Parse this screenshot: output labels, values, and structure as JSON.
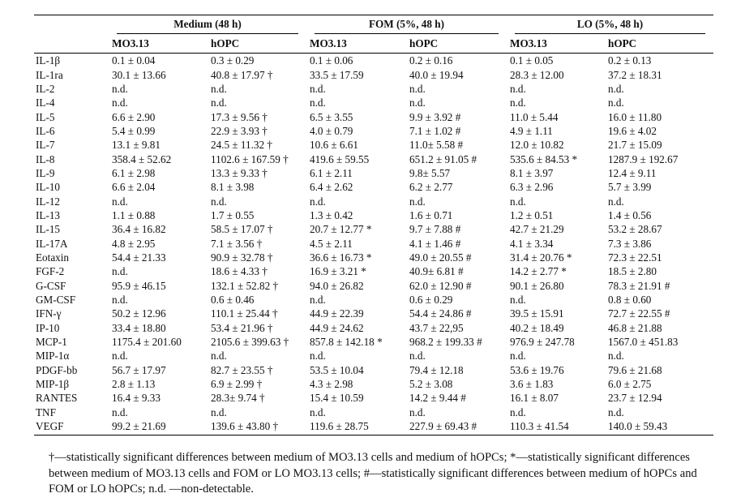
{
  "table": {
    "group_headers": [
      "Medium (48 h)",
      "FOM (5%, 48 h)",
      "LO (5%, 48 h)"
    ],
    "sub_headers": [
      "MO3.13",
      "hOPC",
      "MO3.13",
      "hOPC",
      "MO3.13",
      "hOPC"
    ],
    "rows": [
      {
        "label": "IL-1β",
        "cells": [
          "0.1 ± 0.04",
          "0.3 ± 0.29",
          "0.1 ± 0.06",
          "0.2 ± 0.16",
          "0.1 ± 0.05",
          "0.2 ± 0.13"
        ]
      },
      {
        "label": "IL-1ra",
        "cells": [
          "30.1 ± 13.66",
          "40.8 ± 17.97 †",
          "33.5 ± 17.59",
          "40.0 ± 19.94",
          "28.3 ± 12.00",
          "37.2 ± 18.31"
        ]
      },
      {
        "label": "IL-2",
        "cells": [
          "n.d.",
          "n.d.",
          "n.d.",
          "n.d.",
          "n.d.",
          "n.d."
        ]
      },
      {
        "label": "IL-4",
        "cells": [
          "n.d.",
          "n.d.",
          "n.d.",
          "n.d.",
          "n.d.",
          "n.d."
        ]
      },
      {
        "label": "IL-5",
        "cells": [
          "6.6 ± 2.90",
          "17.3 ± 9.56 †",
          "6.5 ± 3.55",
          "9.9 ± 3.92 #",
          "11.0 ± 5.44",
          "16.0 ± 11.80"
        ]
      },
      {
        "label": "IL-6",
        "cells": [
          "5.4 ± 0.99",
          "22.9 ± 3.93 †",
          "4.0 ± 0.79",
          "7.1 ± 1.02 #",
          "4.9 ± 1.11",
          "19.6 ± 4.02"
        ]
      },
      {
        "label": "IL-7",
        "cells": [
          "13.1 ± 9.81",
          "24.5 ± 11.32 †",
          "10.6 ± 6.61",
          "11.0± 5.58 #",
          "12.0 ± 10.82",
          "21.7 ± 15.09"
        ]
      },
      {
        "label": "IL-8",
        "cells": [
          "358.4 ± 52.62",
          "1102.6 ± 167.59 †",
          "419.6 ± 59.55",
          "651.2 ± 91.05 #",
          "535.6 ± 84.53 *",
          "1287.9 ± 192.67"
        ]
      },
      {
        "label": "IL-9",
        "cells": [
          "6.1 ± 2.98",
          "13.3 ± 9.33 †",
          "6.1 ± 2.11",
          "9.8± 5.57",
          "8.1 ± 3.97",
          "12.4 ± 9.11"
        ]
      },
      {
        "label": "IL-10",
        "cells": [
          "6.6 ± 2.04",
          "8.1 ± 3.98",
          "6.4 ± 2.62",
          "6.2 ± 2.77",
          "6.3 ± 2.96",
          "5.7 ± 3.99"
        ]
      },
      {
        "label": "IL-12",
        "cells": [
          "n.d.",
          "n.d.",
          "n.d.",
          "n.d.",
          "n.d.",
          "n.d."
        ]
      },
      {
        "label": "IL-13",
        "cells": [
          "1.1 ± 0.88",
          "1.7 ± 0.55",
          "1.3 ± 0.42",
          "1.6 ± 0.71",
          "1.2 ± 0.51",
          "1.4 ± 0.56"
        ]
      },
      {
        "label": "IL-15",
        "cells": [
          "36.4 ± 16.82",
          "58.5 ± 17.07 †",
          "20.7 ± 12.77 *",
          "9.7 ± 7.88 #",
          "42.7 ± 21.29",
          "53.2 ± 28.67"
        ]
      },
      {
        "label": "IL-17A",
        "cells": [
          "4.8 ± 2.95",
          "7.1 ± 3.56 †",
          "4.5 ± 2.11",
          "4.1 ± 1.46 #",
          "4.1 ± 3.34",
          "7.3 ± 3.86"
        ]
      },
      {
        "label": "Eotaxin",
        "cells": [
          "54.4 ± 21.33",
          "90.9 ± 32.78 †",
          "36.6 ± 16.73 *",
          "49.0 ± 20.55 #",
          "31.4 ± 20.76 *",
          "72.3 ± 22.51"
        ]
      },
      {
        "label": "FGF-2",
        "cells": [
          "n.d.",
          "18.6 ± 4.33 †",
          "16.9 ± 3.21 *",
          "40.9± 6.81 #",
          "14.2 ± 2.77 *",
          "18.5 ± 2.80"
        ]
      },
      {
        "label": "G-CSF",
        "cells": [
          "95.9 ± 46.15",
          "132.1 ± 52.82 †",
          "94.0 ± 26.82",
          "62.0 ± 12.90 #",
          "90.1 ± 26.80",
          "78.3 ± 21.91 #"
        ]
      },
      {
        "label": "GM-CSF",
        "cells": [
          "n.d.",
          "0.6 ± 0.46",
          "n.d.",
          "0.6 ± 0.29",
          "n.d.",
          "0.8 ± 0.60"
        ]
      },
      {
        "label": "IFN-γ",
        "cells": [
          "50.2 ± 12.96",
          "110.1 ± 25.44 †",
          "44.9 ± 22.39",
          "54.4 ± 24.86 #",
          "39.5 ± 15.91",
          "72.7 ± 22.55 #"
        ]
      },
      {
        "label": "IP-10",
        "cells": [
          "33.4 ± 18.80",
          "53.4 ± 21.96 †",
          "44.9 ± 24.62",
          "43.7 ± 22,95",
          "40.2 ± 18.49",
          "46.8 ± 21.88"
        ]
      },
      {
        "label": "MCP-1",
        "cells": [
          "1175.4 ± 201.60",
          "2105.6 ± 399.63 †",
          "857.8 ± 142.18 *",
          "968.2 ± 199.33 #",
          "976.9 ± 247.78",
          "1567.0 ± 451.83"
        ]
      },
      {
        "label": "MIP-1α",
        "cells": [
          "n.d.",
          "n.d.",
          "n.d.",
          "n.d.",
          "n.d.",
          "n.d."
        ]
      },
      {
        "label": "PDGF-bb",
        "cells": [
          "56.7 ± 17.97",
          "82.7 ± 23.55 †",
          "53.5 ± 10.04",
          "79.4 ± 12.18",
          "53.6 ± 19.76",
          "79.6 ± 21.68"
        ]
      },
      {
        "label": "MIP-1β",
        "cells": [
          "2.8 ± 1.13",
          "6.9 ± 2.99 †",
          "4.3 ± 2.98",
          "5.2 ± 3.08",
          "3.6 ± 1.83",
          "6.0 ± 2.75"
        ]
      },
      {
        "label": "RANTES",
        "cells": [
          "16.4 ± 9.33",
          "28.3± 9.74 †",
          "15.4 ± 10.59",
          "14.2 ± 9.44 #",
          "16.1 ± 8.07",
          "23.7 ± 12.94"
        ]
      },
      {
        "label": "TNF",
        "cells": [
          "n.d.",
          "n.d.",
          "n.d.",
          "n.d.",
          "n.d.",
          "n.d."
        ]
      },
      {
        "label": "VEGF",
        "cells": [
          "99.2 ± 21.69",
          "139.6 ± 43.80 †",
          "119.6 ± 28.75",
          "227.9 ± 69.43 #",
          "110.3 ± 41.54",
          "140.0 ± 59.43"
        ]
      }
    ]
  },
  "footnote": "†—statistically significant differences between medium of MO3.13 cells and medium of hOPCs; *—statistically significant differences between medium of MO3.13 cells and FOM or LO MO3.13 cells; #—statistically significant differences between medium of hOPCs and FOM or LO hOPCs; n.d. —non-detectable."
}
